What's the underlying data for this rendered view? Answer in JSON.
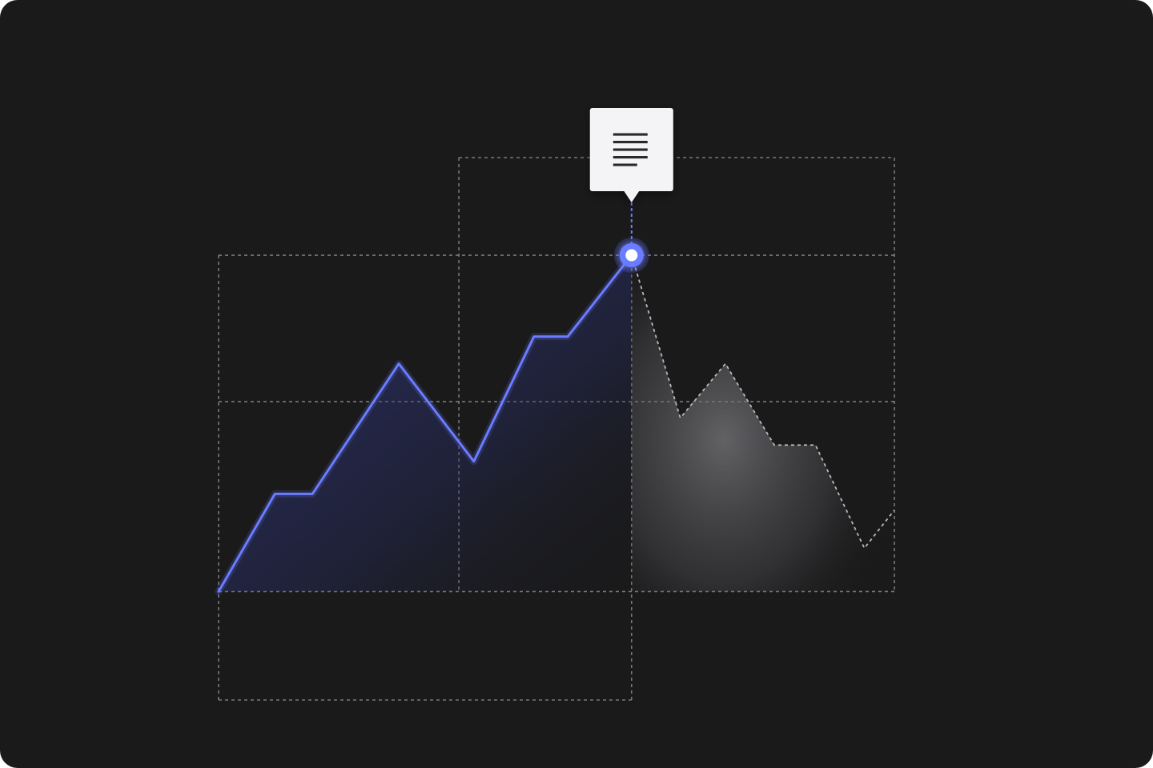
{
  "chart_data": {
    "type": "line",
    "title": "",
    "xlabel": "",
    "ylabel": "",
    "grid": true,
    "actual": {
      "x": [
        0,
        0.75,
        1.25,
        2.4,
        3.4,
        4.2,
        4.65,
        5.5
      ],
      "y": [
        0,
        0.9,
        0.9,
        2.1,
        1.2,
        2.35,
        2.35,
        3.1
      ]
    },
    "projected": {
      "x": [
        5.5,
        6.15,
        6.75,
        7.4,
        7.95,
        8.6,
        9.0
      ],
      "y": [
        3.1,
        1.6,
        2.1,
        1.35,
        1.35,
        0.4,
        0.75
      ]
    },
    "highlight": {
      "x": 5.5,
      "y": 3.1
    },
    "xlim": [
      0,
      9
    ],
    "ylim": [
      -1,
      4
    ],
    "colors": {
      "background": "#1a1a1b",
      "line": "#6b7cff",
      "marker": "#6b7cff",
      "grid": "#8a8a8f",
      "projected_fill": "#7a7a7e",
      "note": "#f4f4f6"
    },
    "note_icon": "text-lines-icon"
  }
}
